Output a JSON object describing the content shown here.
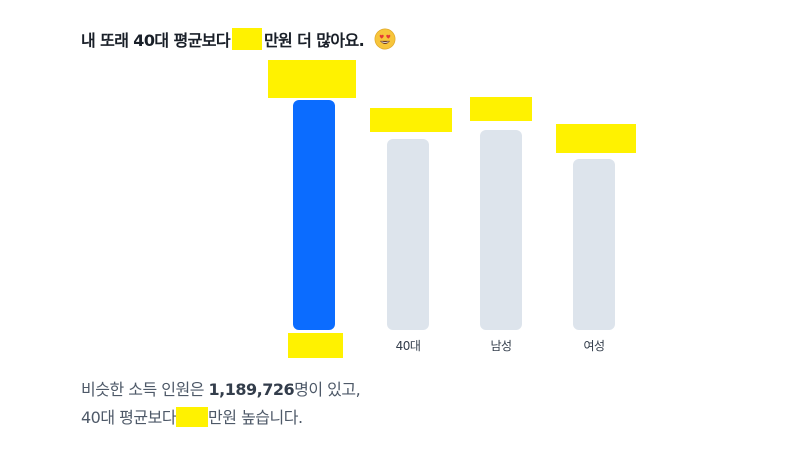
{
  "headline": {
    "prefix": "내 또래 40대 평균보다",
    "suffix": "만원 더 많아요.",
    "emoji_icon": "heart-eyes-emoji-icon"
  },
  "chart_data": {
    "type": "bar",
    "categories": [
      "",
      "40대",
      "남성",
      "여성"
    ],
    "highlight_index": 0,
    "colors": {
      "highlight": "#0b6cff",
      "other": "#dde4ec",
      "redaction": "#fff200"
    }
  },
  "summary": {
    "line1_before": "비슷한 소득 인원은 ",
    "line1_count": "1,189,726",
    "line1_after": "명이 있고,",
    "line2_before": "40대 평균보다",
    "line2_after": "만원 높습니다."
  }
}
